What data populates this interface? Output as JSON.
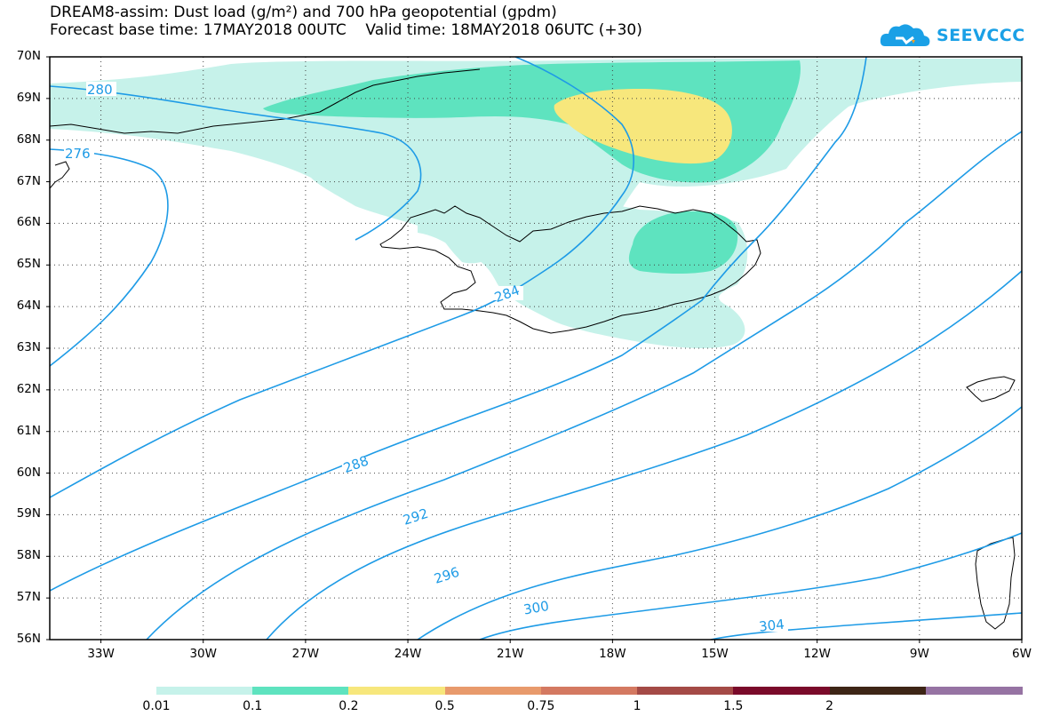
{
  "title": {
    "line1": "DREAM8-assim: Dust load (g/m²) and 700 hPa geopotential (gpdm)",
    "line2": "Forecast base time: 17MAY2018 00UTC    Valid time: 18MAY2018 06UTC (+30)"
  },
  "logo": {
    "text": "SEEVCCC",
    "color": "#1aa0e6"
  },
  "map": {
    "lon_range": [
      -34.5,
      -6
    ],
    "lat_range": [
      56,
      70
    ],
    "grid": "dotted",
    "lat_ticks": [
      "70N",
      "69N",
      "68N",
      "67N",
      "66N",
      "65N",
      "64N",
      "63N",
      "62N",
      "61N",
      "60N",
      "59N",
      "58N",
      "57N",
      "56N"
    ],
    "lon_ticks": [
      "33W",
      "30W",
      "27W",
      "24W",
      "21W",
      "18W",
      "15W",
      "12W",
      "9W",
      "6W"
    ],
    "contour_color": "#1e9be6",
    "contour_labels": [
      "280",
      "276",
      "284",
      "288",
      "292",
      "296",
      "300",
      "304"
    ]
  },
  "colorbar": {
    "colors": [
      "#c6f2ea",
      "#5ee3bf",
      "#f7e77c",
      "#e89a6c",
      "#d47961",
      "#a44a46",
      "#7a0a2a",
      "#3d2516",
      "#9673a3"
    ],
    "labels": [
      "0.01",
      "0.1",
      "0.2",
      "0.5",
      "0.75",
      "1",
      "1.5",
      "2"
    ]
  }
}
